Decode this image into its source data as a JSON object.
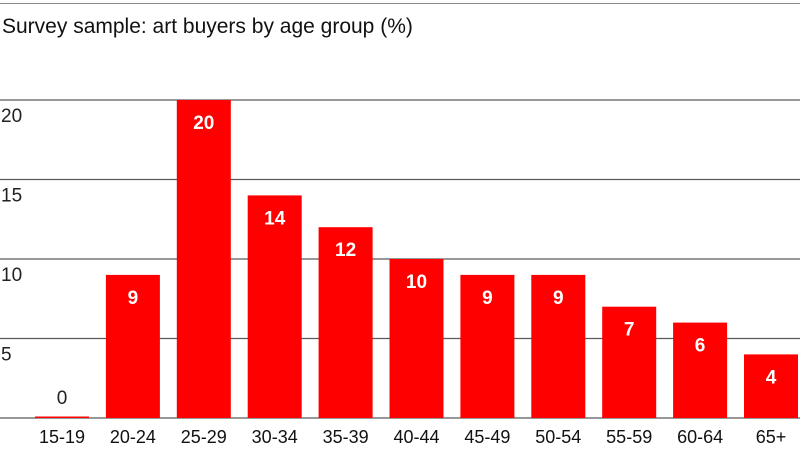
{
  "chart_data": {
    "type": "bar",
    "title": "Survey sample: art buyers by age group (%)",
    "xlabel": "",
    "ylabel": "",
    "categories": [
      "15-19",
      "20-24",
      "25-29",
      "30-34",
      "35-39",
      "40-44",
      "45-49",
      "50-54",
      "55-59",
      "60-64",
      "65+"
    ],
    "values": [
      0,
      9,
      20,
      14,
      12,
      10,
      9,
      9,
      7,
      6,
      4
    ],
    "data_labels": [
      "0",
      "9",
      "20",
      "14",
      "12",
      "10",
      "9",
      "9",
      "7",
      "6",
      "4"
    ],
    "y_ticks": [
      5,
      10,
      15,
      20
    ],
    "y_tick_labels": [
      "5",
      "10",
      "15",
      "20"
    ],
    "ylim": [
      0,
      20
    ],
    "grid": true,
    "legend": "none",
    "bar_color": "#ff0000",
    "grid_color": "#5a5a5a"
  }
}
